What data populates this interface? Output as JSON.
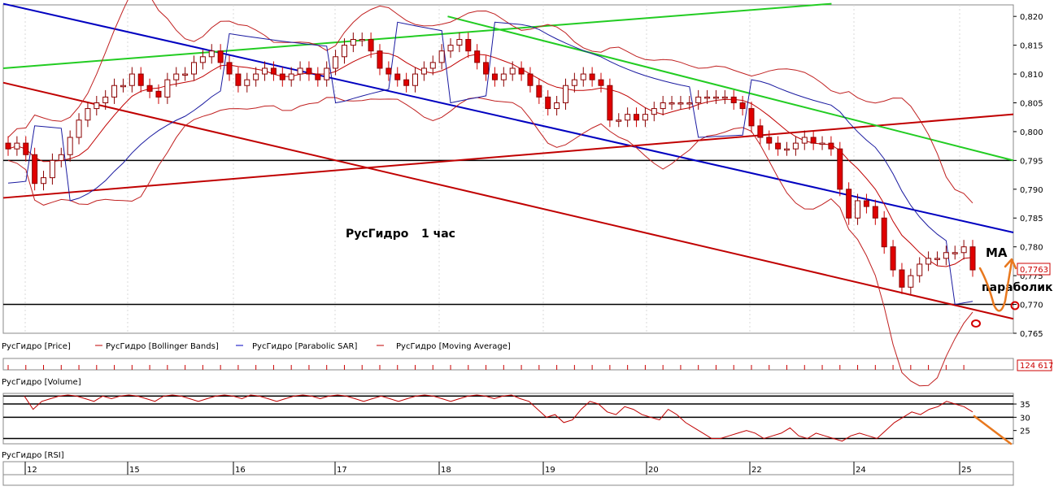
{
  "chart_data": {
    "type": "candlestick",
    "instrument": "РусГидро",
    "timeframe_note": "1 час",
    "y_axis": {
      "min": 0.765,
      "max": 0.822,
      "ticks": [
        0.82,
        0.815,
        0.81,
        0.805,
        0.8,
        0.795,
        0.79,
        0.785,
        0.78,
        0.775,
        0.77,
        0.765
      ],
      "tick_labels": [
        "0,820",
        "0,815",
        "0,810",
        "0,805",
        "0,800",
        "0,795",
        "0,790",
        "0,785",
        "0,780",
        "0,775",
        "0,770",
        "0,765"
      ]
    },
    "last_price_label": "0,7763",
    "last_price": 0.7763,
    "x_axis": {
      "labels": [
        "12",
        "15",
        "16",
        "17",
        "18",
        "19",
        "20",
        "22",
        "24",
        "25"
      ]
    },
    "legend": [
      "РусГидро [Price]",
      "РусГидро [Bollinger Bands]",
      "РусГидро [Parabolic SAR]",
      "РусГидро [Moving Average]"
    ],
    "annotations": {
      "title": "РусГидро",
      "period": "1 час",
      "ma": "MA",
      "parabolic": "параболик"
    },
    "horizontal_levels": [
      0.795,
      0.77
    ],
    "trend_lines": [
      {
        "color": "#0000c0",
        "from": [
          0,
          0.8222
        ],
        "to": [
          1,
          0.7825
        ]
      },
      {
        "color": "#c00000",
        "from": [
          0,
          0.8085
        ],
        "to": [
          1,
          0.7675
        ]
      },
      {
        "color": "#c00000",
        "from": [
          0,
          0.7885
        ],
        "to": [
          1,
          0.803
        ]
      },
      {
        "color": "#22cc22",
        "from": [
          0,
          0.811
        ],
        "to": [
          0.82,
          0.8222
        ]
      },
      {
        "color": "#22cc22",
        "from": [
          0.44,
          0.82
        ],
        "to": [
          1,
          0.795
        ]
      }
    ],
    "price_close_series": [
      0.797,
      0.798,
      0.796,
      0.791,
      0.792,
      0.795,
      0.796,
      0.799,
      0.802,
      0.804,
      0.805,
      0.806,
      0.808,
      0.808,
      0.81,
      0.808,
      0.807,
      0.806,
      0.809,
      0.81,
      0.81,
      0.812,
      0.813,
      0.814,
      0.812,
      0.81,
      0.808,
      0.809,
      0.81,
      0.811,
      0.81,
      0.809,
      0.81,
      0.811,
      0.81,
      0.809,
      0.811,
      0.813,
      0.815,
      0.816,
      0.816,
      0.814,
      0.811,
      0.81,
      0.809,
      0.808,
      0.81,
      0.811,
      0.812,
      0.814,
      0.815,
      0.816,
      0.814,
      0.812,
      0.81,
      0.809,
      0.81,
      0.811,
      0.81,
      0.808,
      0.806,
      0.804,
      0.805,
      0.808,
      0.809,
      0.81,
      0.809,
      0.808,
      0.802,
      0.802,
      0.803,
      0.802,
      0.803,
      0.804,
      0.805,
      0.805,
      0.805,
      0.805,
      0.806,
      0.806,
      0.806,
      0.806,
      0.805,
      0.804,
      0.801,
      0.799,
      0.798,
      0.797,
      0.797,
      0.798,
      0.799,
      0.798,
      0.798,
      0.797,
      0.79,
      0.785,
      0.788,
      0.787,
      0.785,
      0.78,
      0.776,
      0.773,
      0.775,
      0.777,
      0.778,
      0.778,
      0.779,
      0.779,
      0.78,
      0.776
    ],
    "volume": {
      "label": "РусГидро [Volume]",
      "last_label": "124 617"
    },
    "rsi": {
      "label": "РусГидро [RSI]",
      "ticks": [
        35,
        30,
        25
      ],
      "tick_labels": [
        "35",
        "30",
        "25"
      ],
      "levels": [
        30,
        35
      ],
      "values": [
        38,
        33,
        36,
        37,
        38,
        39,
        38,
        37,
        36,
        38,
        37,
        38,
        39,
        38,
        37,
        36,
        38,
        39,
        38,
        37,
        36,
        37,
        38,
        39,
        38,
        37,
        39,
        38,
        37,
        36,
        37,
        38,
        39,
        38,
        37,
        38,
        39,
        38,
        37,
        36,
        37,
        38,
        37,
        36,
        37,
        38,
        39,
        38,
        37,
        36,
        37,
        38,
        39,
        38,
        37,
        38,
        39,
        37,
        36,
        33,
        30,
        31,
        28,
        29,
        33,
        36,
        35,
        32,
        31,
        34,
        33,
        31,
        30,
        29,
        33,
        31,
        28,
        26,
        24,
        22,
        22,
        23,
        24,
        25,
        24,
        22,
        23,
        24,
        26,
        23,
        22,
        24,
        23,
        22,
        21,
        23,
        24,
        23,
        22,
        25,
        28,
        30,
        32,
        31,
        33,
        34,
        36,
        35,
        34,
        32
      ],
      "hand_arrow": "down"
    }
  }
}
